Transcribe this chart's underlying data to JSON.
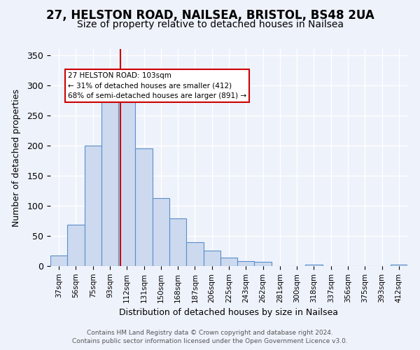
{
  "title": "27, HELSTON ROAD, NAILSEA, BRISTOL, BS48 2UA",
  "subtitle": "Size of property relative to detached houses in Nailsea",
  "xlabel": "Distribution of detached houses by size in Nailsea",
  "ylabel": "Number of detached properties",
  "footer_line1": "Contains HM Land Registry data © Crown copyright and database right 2024.",
  "footer_line2": "Contains public sector information licensed under the Open Government Licence v3.0.",
  "bar_labels": [
    "37sqm",
    "56sqm",
    "75sqm",
    "93sqm",
    "112sqm",
    "131sqm",
    "150sqm",
    "168sqm",
    "187sqm",
    "206sqm",
    "225sqm",
    "243sqm",
    "262sqm",
    "281sqm",
    "300sqm",
    "318sqm",
    "337sqm",
    "356sqm",
    "375sqm",
    "393sqm",
    "412sqm"
  ],
  "bar_values": [
    17,
    68,
    200,
    278,
    278,
    195,
    113,
    79,
    40,
    25,
    14,
    8,
    7,
    0,
    0,
    2,
    0,
    0,
    0,
    0,
    2
  ],
  "bar_color": "#ccd9ef",
  "bar_edge_color": "#5b8fc9",
  "vline_x": 3.62,
  "vline_color": "#cc0000",
  "annotation_text": "27 HELSTON ROAD: 103sqm\n← 31% of detached houses are smaller (412)\n68% of semi-detached houses are larger (891) →",
  "annotation_box_color": "#ffffff",
  "annotation_box_edge_color": "#cc0000",
  "ylim": [
    0,
    360
  ],
  "yticks": [
    0,
    50,
    100,
    150,
    200,
    250,
    300,
    350
  ],
  "bg_color": "#eef2fb",
  "grid_color": "#ffffff",
  "title_fontsize": 12,
  "subtitle_fontsize": 10
}
